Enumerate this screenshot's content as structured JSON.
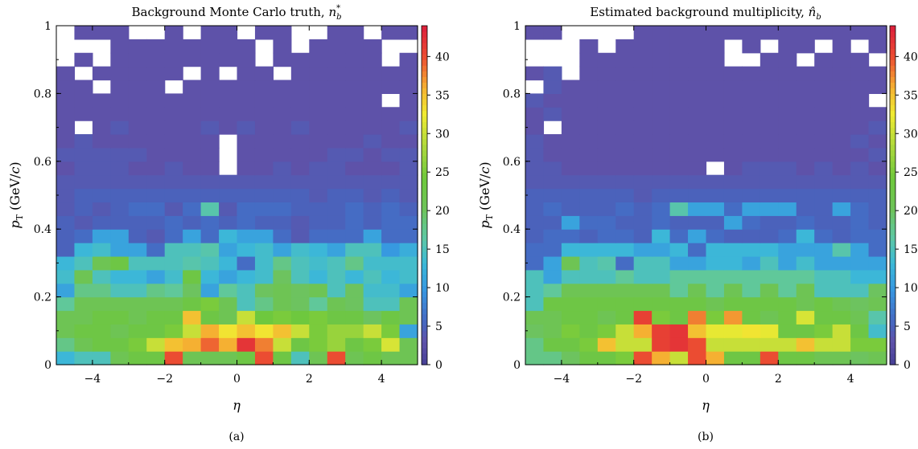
{
  "chart_data": [
    {
      "type": "heatmap",
      "panel_label": "(a)",
      "title": "Background Monte Carlo truth, n*_b",
      "title_text": "Background Monte Carlo truth, ",
      "title_symbol": "n",
      "title_sup": "*",
      "title_sub": "b",
      "xlabel": "η",
      "ylabel": "p_T (GeV/c)",
      "ylabel_main": "p",
      "ylabel_sub": "T",
      "ylabel_unit": " (GeV/",
      "ylabel_unit_c": "c",
      "ylabel_unit_end": ")",
      "xlim": [
        -5,
        5
      ],
      "ylim": [
        0,
        1
      ],
      "x_ticks": [
        -4,
        -2,
        0,
        2,
        4
      ],
      "x_tick_labels": [
        "−4",
        "−2",
        "0",
        "2",
        "4"
      ],
      "y_ticks": [
        0,
        0.2,
        0.4,
        0.6,
        0.8,
        1
      ],
      "y_tick_labels": [
        "0",
        "0.2",
        "0.4",
        "0.6",
        "0.8",
        "1"
      ],
      "colorbar_range": [
        0,
        44
      ],
      "colorbar_ticks": [
        0,
        5,
        10,
        15,
        20,
        25,
        30,
        35,
        40
      ],
      "n_eta_bins": 20,
      "n_pt_bins": 25,
      "eta_bin_width": 0.5,
      "pt_bin_width": 0.04,
      "values": [
        [
          13,
          15,
          15,
          21,
          23,
          23,
          40,
          21,
          21,
          21,
          23,
          40,
          23,
          15,
          21,
          40,
          21,
          23,
          21,
          21
        ],
        [
          18,
          21,
          23,
          23,
          25,
          30,
          35,
          36,
          39,
          36,
          42,
          38,
          30,
          23,
          25,
          27,
          23,
          25,
          31,
          21
        ],
        [
          21,
          23,
          23,
          21,
          23,
          23,
          25,
          30,
          36,
          33,
          35,
          33,
          35,
          30,
          25,
          27,
          27,
          30,
          25,
          11
        ],
        [
          21,
          21,
          23,
          23,
          21,
          23,
          23,
          35,
          23,
          21,
          30,
          24,
          25,
          24,
          25,
          23,
          23,
          20,
          23,
          21
        ],
        [
          17,
          21,
          21,
          21,
          21,
          21,
          21,
          23,
          25,
          21,
          15,
          18,
          21,
          20,
          17,
          21,
          20,
          15,
          15,
          21
        ],
        [
          11,
          18,
          18,
          15,
          15,
          18,
          17,
          20,
          11,
          17,
          15,
          20,
          21,
          20,
          21,
          15,
          20,
          14,
          14,
          11
        ],
        [
          14,
          21,
          15,
          13,
          13,
          11,
          14,
          23,
          13,
          11,
          13,
          14,
          20,
          15,
          13,
          15,
          13,
          15,
          13,
          14
        ],
        [
          13,
          15,
          21,
          23,
          15,
          15,
          15,
          16,
          15,
          13,
          6,
          14,
          18,
          15,
          14,
          15,
          18,
          14,
          14,
          14
        ],
        [
          5,
          13,
          14,
          11,
          11,
          6,
          15,
          15,
          16,
          11,
          13,
          14,
          11,
          14,
          13,
          11,
          15,
          15,
          10,
          12
        ],
        [
          5,
          6,
          11,
          11,
          5,
          4,
          6,
          11,
          6,
          13,
          11,
          11,
          6,
          4,
          6,
          6,
          6,
          11,
          6,
          6
        ],
        [
          5,
          4,
          5,
          5,
          5,
          5,
          6,
          5,
          6,
          5,
          6,
          5,
          5,
          4,
          5,
          5,
          6,
          5,
          6,
          6
        ],
        [
          4,
          5,
          4,
          5,
          6,
          6,
          4,
          6,
          16,
          4,
          6,
          6,
          6,
          5,
          5,
          5,
          6,
          5,
          6,
          5
        ],
        [
          4,
          5,
          5,
          5,
          5,
          5,
          5,
          5,
          5,
          5,
          5,
          5,
          5,
          5,
          4,
          5,
          5,
          4,
          5,
          4
        ],
        [
          4,
          4,
          4,
          4,
          4,
          4,
          4,
          4,
          4,
          4,
          4,
          4,
          4,
          4,
          4,
          4,
          4,
          4,
          4,
          4
        ],
        [
          3,
          4,
          4,
          4,
          3,
          3,
          4,
          3,
          3,
          0,
          3,
          3,
          4,
          3,
          4,
          4,
          3,
          3,
          3,
          4
        ],
        [
          4,
          4,
          4,
          4,
          4,
          3,
          3,
          3,
          3,
          0,
          3,
          3,
          3,
          3,
          3,
          4,
          4,
          3,
          4,
          4
        ],
        [
          3,
          4,
          3,
          3,
          3,
          3,
          3,
          3,
          3,
          0,
          3,
          3,
          3,
          3,
          3,
          3,
          3,
          4,
          3,
          3
        ],
        [
          3,
          0,
          3,
          4,
          3,
          3,
          3,
          3,
          4,
          3,
          4,
          3,
          3,
          4,
          3,
          3,
          3,
          3,
          3,
          4
        ],
        [
          3,
          3,
          3,
          3,
          3,
          3,
          3,
          3,
          3,
          3,
          3,
          3,
          3,
          3,
          3,
          3,
          3,
          3,
          3,
          3
        ],
        [
          3,
          3,
          3,
          3,
          3,
          3,
          3,
          3,
          3,
          3,
          3,
          3,
          3,
          3,
          3,
          3,
          3,
          3,
          0,
          3
        ],
        [
          3,
          3,
          0,
          3,
          3,
          3,
          0,
          3,
          3,
          3,
          3,
          3,
          3,
          3,
          3,
          3,
          3,
          3,
          3,
          3
        ],
        [
          3,
          0,
          3,
          3,
          3,
          3,
          3,
          0,
          3,
          0,
          3,
          3,
          0,
          3,
          3,
          3,
          3,
          3,
          3,
          3
        ],
        [
          0,
          3,
          0,
          3,
          3,
          3,
          3,
          3,
          3,
          3,
          3,
          0,
          3,
          3,
          3,
          3,
          3,
          3,
          0,
          3
        ],
        [
          0,
          0,
          0,
          3,
          3,
          3,
          3,
          3,
          3,
          3,
          3,
          0,
          3,
          0,
          3,
          3,
          3,
          3,
          0,
          0
        ],
        [
          0,
          3,
          3,
          3,
          0,
          0,
          3,
          0,
          3,
          3,
          0,
          3,
          3,
          0,
          0,
          3,
          3,
          0,
          3,
          3
        ]
      ]
    },
    {
      "type": "heatmap",
      "panel_label": "(b)",
      "title": "Estimated background multiplicity, n̂_b",
      "title_text": "Estimated background multiplicity, ",
      "title_symbol": "n̂",
      "title_sup": "",
      "title_sub": "b",
      "xlabel": "η",
      "ylabel": "p_T (GeV/c)",
      "ylabel_main": "p",
      "ylabel_sub": "T",
      "ylabel_unit": " (GeV/",
      "ylabel_unit_c": "c",
      "ylabel_unit_end": ")",
      "xlim": [
        -5,
        5
      ],
      "ylim": [
        0,
        1
      ],
      "x_ticks": [
        -4,
        -2,
        0,
        2,
        4
      ],
      "x_tick_labels": [
        "−4",
        "−2",
        "0",
        "2",
        "4"
      ],
      "y_ticks": [
        0,
        0.2,
        0.4,
        0.6,
        0.8,
        1
      ],
      "y_tick_labels": [
        "0",
        "0.2",
        "0.4",
        "0.6",
        "0.8",
        "1"
      ],
      "colorbar_range": [
        0,
        44
      ],
      "colorbar_ticks": [
        0,
        5,
        10,
        15,
        20,
        25,
        30,
        35,
        40
      ],
      "n_eta_bins": 20,
      "n_pt_bins": 25,
      "eta_bin_width": 0.5,
      "pt_bin_width": 0.04,
      "values": [
        [
          18,
          18,
          20,
          23,
          23,
          25,
          40,
          36,
          30,
          40,
          36,
          23,
          23,
          40,
          23,
          23,
          21,
          21,
          20,
          21
        ],
        [
          18,
          23,
          23,
          25,
          35,
          30,
          30,
          41,
          42,
          40,
          30,
          30,
          30,
          30,
          30,
          35,
          30,
          30,
          25,
          25
        ],
        [
          20,
          21,
          25,
          23,
          25,
          30,
          36,
          41,
          42,
          35,
          32,
          32,
          33,
          32,
          23,
          23,
          25,
          30,
          23,
          14
        ],
        [
          21,
          21,
          23,
          23,
          21,
          23,
          41,
          25,
          23,
          38,
          25,
          37,
          23,
          21,
          23,
          31,
          23,
          23,
          21,
          16
        ],
        [
          15,
          23,
          23,
          23,
          23,
          23,
          23,
          23,
          23,
          23,
          21,
          23,
          23,
          23,
          23,
          21,
          23,
          21,
          20,
          21
        ],
        [
          15,
          17,
          21,
          21,
          21,
          21,
          21,
          21,
          17,
          21,
          17,
          21,
          17,
          21,
          17,
          21,
          15,
          15,
          15,
          20
        ],
        [
          15,
          11,
          15,
          15,
          15,
          17,
          15,
          15,
          17,
          17,
          17,
          17,
          17,
          17,
          17,
          17,
          15,
          15,
          13,
          13
        ],
        [
          6,
          11,
          21,
          15,
          16,
          6,
          15,
          15,
          11,
          11,
          13,
          13,
          11,
          15,
          11,
          14,
          11,
          11,
          11,
          11
        ],
        [
          6,
          6,
          13,
          13,
          13,
          13,
          11,
          11,
          13,
          6,
          13,
          13,
          13,
          13,
          11,
          11,
          11,
          16,
          11,
          6
        ],
        [
          5,
          6,
          6,
          5,
          6,
          6,
          5,
          13,
          6,
          11,
          6,
          5,
          5,
          5,
          6,
          13,
          6,
          5,
          6,
          6
        ],
        [
          5,
          5,
          11,
          6,
          6,
          5,
          5,
          6,
          5,
          5,
          5,
          11,
          6,
          5,
          5,
          6,
          5,
          5,
          6,
          5
        ],
        [
          5,
          6,
          5,
          5,
          5,
          6,
          5,
          6,
          16,
          11,
          11,
          6,
          11,
          11,
          11,
          5,
          5,
          11,
          6,
          5
        ],
        [
          5,
          5,
          5,
          5,
          5,
          5,
          4,
          5,
          5,
          5,
          5,
          5,
          5,
          5,
          5,
          5,
          5,
          5,
          5,
          5
        ],
        [
          4,
          4,
          4,
          4,
          4,
          4,
          4,
          4,
          4,
          4,
          4,
          4,
          4,
          4,
          4,
          4,
          4,
          4,
          4,
          4
        ],
        [
          4,
          4,
          3,
          3,
          3,
          3,
          3,
          3,
          3,
          3,
          0,
          3,
          4,
          4,
          4,
          3,
          4,
          3,
          4,
          3
        ],
        [
          4,
          3,
          3,
          3,
          3,
          3,
          3,
          3,
          3,
          3,
          3,
          3,
          3,
          3,
          3,
          3,
          3,
          3,
          3,
          4
        ],
        [
          4,
          3,
          3,
          3,
          3,
          3,
          3,
          3,
          3,
          3,
          3,
          3,
          3,
          3,
          3,
          3,
          3,
          3,
          4,
          3
        ],
        [
          3,
          0,
          3,
          3,
          3,
          3,
          3,
          3,
          3,
          3,
          3,
          3,
          3,
          3,
          3,
          3,
          3,
          3,
          3,
          4
        ],
        [
          3,
          4,
          3,
          3,
          3,
          3,
          3,
          3,
          3,
          3,
          3,
          3,
          3,
          3,
          3,
          3,
          3,
          3,
          3,
          3
        ],
        [
          4,
          3,
          3,
          3,
          3,
          3,
          3,
          3,
          3,
          3,
          3,
          3,
          3,
          3,
          3,
          3,
          3,
          3,
          3,
          0
        ],
        [
          0,
          4,
          3,
          3,
          3,
          3,
          3,
          3,
          3,
          3,
          3,
          3,
          3,
          3,
          3,
          3,
          3,
          3,
          3,
          3
        ],
        [
          3,
          4,
          0,
          3,
          3,
          3,
          3,
          3,
          3,
          3,
          3,
          3,
          3,
          3,
          3,
          3,
          3,
          3,
          3,
          3
        ],
        [
          0,
          0,
          0,
          3,
          3,
          3,
          3,
          3,
          3,
          3,
          3,
          0,
          0,
          3,
          3,
          0,
          3,
          3,
          3,
          0
        ],
        [
          0,
          0,
          0,
          3,
          0,
          3,
          3,
          3,
          3,
          3,
          3,
          0,
          3,
          0,
          3,
          3,
          0,
          3,
          0,
          3
        ],
        [
          3,
          3,
          0,
          0,
          0,
          0,
          3,
          3,
          3,
          3,
          3,
          3,
          3,
          3,
          3,
          3,
          3,
          3,
          3,
          3
        ]
      ]
    }
  ]
}
